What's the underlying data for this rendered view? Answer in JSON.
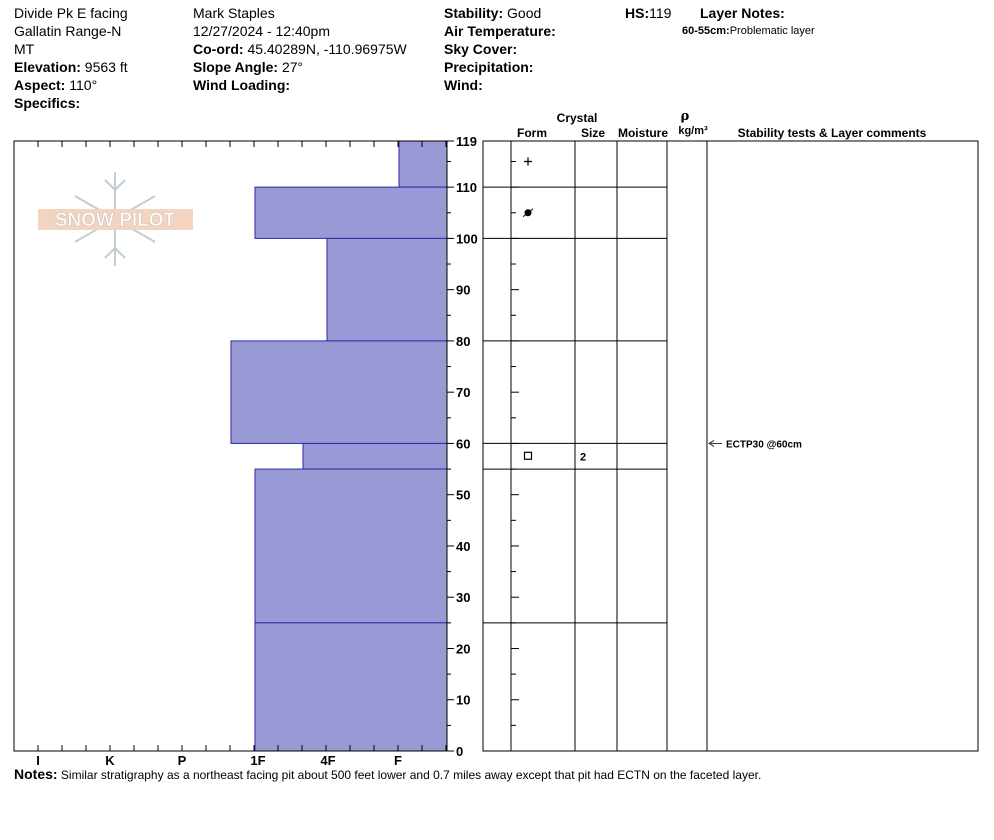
{
  "header": {
    "location_line1": "Divide Pk E facing",
    "location_line2": "Gallatin Range-N",
    "location_line3": "MT",
    "elevation_label": "Elevation:",
    "elevation_value": "9563 ft",
    "aspect_label": "Aspect:",
    "aspect_value": "110°",
    "specifics_label": "Specifics:",
    "observer": "Mark Staples",
    "datetime": "12/27/2024 - 12:40pm",
    "coord_label": "Co-ord:",
    "coord_value": "45.40289N, -110.96975W",
    "slope_label": "Slope Angle:",
    "slope_value": "27°",
    "wind_loading_label": "Wind Loading:",
    "stability_label": "Stability:",
    "stability_value": "Good",
    "air_temp_label": "Air Temperature:",
    "sky_cover_label": "Sky Cover:",
    "precip_label": "Precipitation:",
    "wind_label": "Wind:",
    "hs_label": "HS:",
    "hs_value": "119",
    "layer_notes_label": "Layer Notes:",
    "layer_note_range": "60-55cm:",
    "layer_note_text": "Problematic layer"
  },
  "logo_text": "SNOW PILOT",
  "columns": {
    "crystal": "Crystal",
    "form": "Form",
    "size": "Size",
    "moisture": "Moisture",
    "rho": "ρ",
    "density_unit": "kg/m³",
    "stability_comments": "Stability tests & Layer comments"
  },
  "notes": {
    "label": "Notes:",
    "text": "Similar stratigraphy as a northeast facing pit about 500 feet lower and 0.7 miles away except that pit had ECTN on the faceted layer."
  },
  "colors": {
    "hardness_fill": "#9999d6",
    "hardness_stroke": "#2a2aa0"
  },
  "chart_data": {
    "type": "bar",
    "orientation": "horizontal-profile",
    "ylabel": "",
    "ylim": [
      0,
      119
    ],
    "y_ticks": [
      0,
      10,
      20,
      30,
      40,
      50,
      60,
      70,
      80,
      90,
      100,
      110,
      119
    ],
    "x_categories": [
      "I",
      "K",
      "P",
      "1F",
      "4F",
      "F"
    ],
    "hardness_layers": [
      {
        "bottom": 110,
        "top": 119,
        "hardness": "F+"
      },
      {
        "bottom": 100,
        "top": 110,
        "hardness": "1F"
      },
      {
        "bottom": 80,
        "top": 100,
        "hardness": "4F"
      },
      {
        "bottom": 60,
        "top": 80,
        "hardness": "1F+"
      },
      {
        "bottom": 55,
        "top": 60,
        "hardness": "4F+"
      },
      {
        "bottom": 25,
        "top": 55,
        "hardness": "1F"
      },
      {
        "bottom": 0,
        "top": 25,
        "hardness": "1F"
      }
    ],
    "layer_boundaries": [
      119,
      110,
      100,
      80,
      60,
      55,
      25
    ],
    "crystal_forms": [
      {
        "depth": 115,
        "symbol": "+"
      },
      {
        "depth": 105,
        "symbol": "●"
      },
      {
        "depth": 57.5,
        "symbol": "□",
        "size": "2"
      }
    ],
    "stability_tests": [
      {
        "depth": 60,
        "text": "ECTP30 @60cm"
      }
    ]
  }
}
